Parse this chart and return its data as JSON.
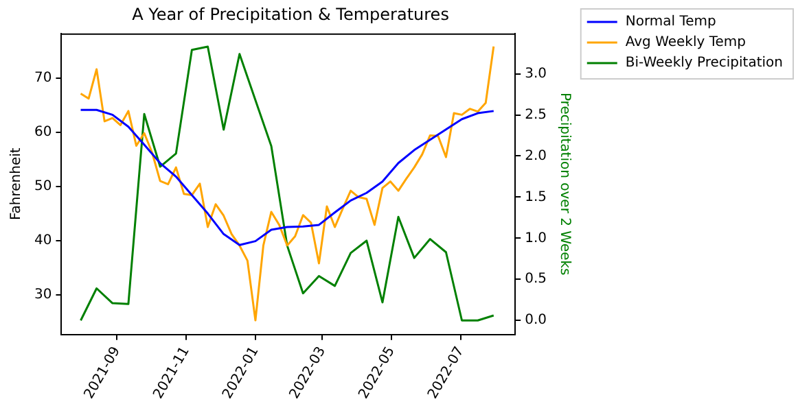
{
  "chart_data": {
    "type": "line",
    "title": "A Year of Precipitation & Temperatures",
    "ylabel": "Fahrenheit",
    "y2label": "Precipitation over 2 Weeks",
    "x": [
      "2021-07-31",
      "2021-08-07",
      "2021-08-14",
      "2021-08-21",
      "2021-08-28",
      "2021-09-04",
      "2021-09-11",
      "2021-09-18",
      "2021-09-25",
      "2021-10-02",
      "2021-10-09",
      "2021-10-16",
      "2021-10-23",
      "2021-10-30",
      "2021-11-06",
      "2021-11-13",
      "2021-11-20",
      "2021-11-27",
      "2021-12-04",
      "2021-12-11",
      "2021-12-18",
      "2021-12-25",
      "2022-01-01",
      "2022-01-08",
      "2022-01-15",
      "2022-01-22",
      "2022-01-29",
      "2022-02-05",
      "2022-02-12",
      "2022-02-19",
      "2022-02-26",
      "2022-03-05",
      "2022-03-12",
      "2022-03-19",
      "2022-03-26",
      "2022-04-02",
      "2022-04-09",
      "2022-04-16",
      "2022-04-23",
      "2022-04-30",
      "2022-05-07",
      "2022-05-14",
      "2022-05-21",
      "2022-05-28",
      "2022-06-04",
      "2022-06-11",
      "2022-06-18",
      "2022-06-25",
      "2022-07-02",
      "2022-07-09",
      "2022-07-16",
      "2022-07-23",
      "2022-07-30"
    ],
    "series": [
      {
        "name": "Normal Temp",
        "color": "#0000ff",
        "x": [
          "2021-07-31",
          "2021-08-14",
          "2021-08-28",
          "2021-09-11",
          "2021-09-25",
          "2021-10-09",
          "2021-10-23",
          "2021-11-06",
          "2021-11-20",
          "2021-12-04",
          "2021-12-18",
          "2022-01-01",
          "2022-01-15",
          "2022-01-29",
          "2022-02-12",
          "2022-02-26",
          "2022-03-12",
          "2022-03-26",
          "2022-04-09",
          "2022-04-23",
          "2022-05-07",
          "2022-05-21",
          "2022-06-04",
          "2022-06-18",
          "2022-07-02",
          "2022-07-16",
          "2022-07-30"
        ],
        "values": [
          64.1,
          64.1,
          63.2,
          61.0,
          57.7,
          54.3,
          51.8,
          48.4,
          45.0,
          41.2,
          39.2,
          39.9,
          42.0,
          42.5,
          42.6,
          42.9,
          45.2,
          47.4,
          48.8,
          50.9,
          54.3,
          56.7,
          58.6,
          60.5,
          62.4,
          63.5,
          63.9
        ]
      },
      {
        "name": "Avg Weekly Temp",
        "color": "#ffa500",
        "values": [
          67.1,
          66.2,
          71.6,
          62.0,
          62.6,
          61.3,
          63.9,
          57.5,
          59.8,
          56.2,
          51.0,
          50.4,
          53.5,
          48.6,
          48.4,
          50.5,
          42.5,
          46.7,
          44.6,
          41.2,
          39.1,
          36.3,
          25.3,
          39.1,
          45.3,
          42.9,
          39.1,
          40.8,
          44.7,
          43.3,
          35.8,
          46.3,
          42.5,
          45.9,
          49.2,
          48.0,
          47.7,
          42.9,
          49.7,
          50.9,
          49.2,
          51.4,
          53.5,
          55.9,
          59.4,
          59.3,
          55.4,
          63.5,
          63.2,
          64.3,
          63.8,
          65.4,
          75.8
        ]
      },
      {
        "name": "Bi-Weekly Precipitation",
        "color": "#008000",
        "axis": "y2",
        "x": [
          "2021-07-31",
          "2021-08-14",
          "2021-08-28",
          "2021-09-11",
          "2021-09-25",
          "2021-10-09",
          "2021-10-23",
          "2021-11-06",
          "2021-11-20",
          "2021-12-04",
          "2021-12-18",
          "2022-01-01",
          "2022-01-15",
          "2022-01-29",
          "2022-02-12",
          "2022-02-26",
          "2022-03-12",
          "2022-03-26",
          "2022-04-09",
          "2022-04-23",
          "2022-05-07",
          "2022-05-21",
          "2022-06-04",
          "2022-06-18",
          "2022-07-02",
          "2022-07-16",
          "2022-07-30"
        ],
        "values": [
          0.0,
          0.39,
          0.21,
          0.2,
          2.51,
          1.87,
          2.03,
          3.29,
          3.33,
          2.32,
          3.24,
          2.68,
          2.12,
          0.91,
          0.33,
          0.54,
          0.42,
          0.82,
          0.97,
          0.22,
          1.26,
          0.76,
          0.99,
          0.83,
          0.0,
          0.0,
          0.06
        ]
      }
    ],
    "xlim": [
      "2021-07-14",
      "2022-08-18"
    ],
    "xticks": [
      "2021-09",
      "2021-11",
      "2022-01",
      "2022-03",
      "2022-05",
      "2022-07"
    ],
    "ylim": [
      22.7,
      78.2
    ],
    "yticks": [
      30,
      40,
      50,
      60,
      70
    ],
    "y2lim": [
      -0.17,
      3.49
    ],
    "y2ticks": [
      {
        "value": 0,
        "label": "0.0"
      },
      {
        "value": 0.5,
        "label": "0.5"
      },
      {
        "value": 1,
        "label": "1.0"
      },
      {
        "value": 1.5,
        "label": "1.5"
      },
      {
        "value": 2,
        "label": "2.0"
      },
      {
        "value": 2.5,
        "label": "2.5"
      },
      {
        "value": 3,
        "label": "3.0"
      }
    ],
    "legend": "top right",
    "grid": false,
    "marker": "none",
    "line_style": "solid"
  }
}
